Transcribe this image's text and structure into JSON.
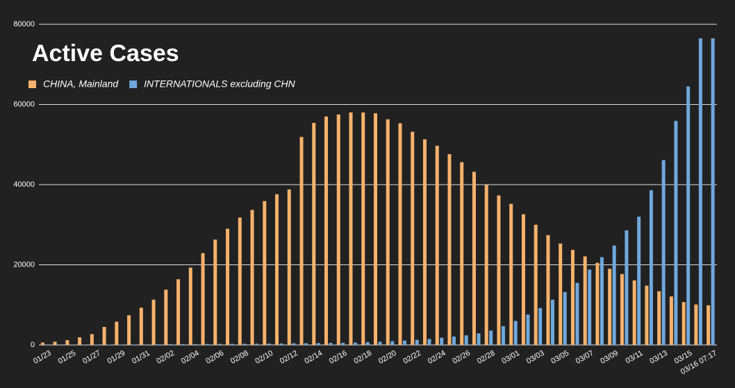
{
  "chart_data": {
    "type": "bar",
    "title": "Active Cases",
    "categories": [
      "01/23",
      null,
      "01/25",
      null,
      "01/27",
      null,
      "01/29",
      null,
      "01/31",
      null,
      "02/02",
      null,
      "02/04",
      null,
      "02/06",
      null,
      "02/08",
      null,
      "02/10",
      null,
      "02/12",
      null,
      "02/14",
      null,
      "02/16",
      null,
      "02/18",
      null,
      "02/20",
      null,
      "02/22",
      null,
      "02/24",
      null,
      "02/26",
      null,
      "02/28",
      null,
      "03/01",
      null,
      "03/03",
      null,
      "03/05",
      null,
      "03/07",
      null,
      "03/09",
      null,
      "03/11",
      null,
      "03/13",
      null,
      "03/15",
      null,
      "03/16 07:17"
    ],
    "series": [
      {
        "name": "CHINA, Mainland",
        "color": "#f6b26b",
        "values": [
          600,
          800,
          1200,
          1900,
          2700,
          4500,
          5800,
          7400,
          9300,
          11300,
          13800,
          16400,
          19300,
          22900,
          26300,
          29000,
          31800,
          33700,
          35900,
          37600,
          38800,
          51900,
          55400,
          57000,
          57500,
          58000,
          58000,
          57800,
          56300,
          55300,
          53200,
          51300,
          49700,
          47600,
          45600,
          43200,
          39900,
          37300,
          35200,
          32600,
          30000,
          27400,
          25300,
          23700,
          22100,
          20500,
          19000,
          17700,
          16100,
          14800,
          13400,
          12100,
          10700,
          10100,
          9900
        ]
      },
      {
        "name": "INTERNATIONALS excluding CHN",
        "color": "#6fa8dc",
        "values": [
          10,
          20,
          30,
          40,
          60,
          80,
          100,
          120,
          140,
          160,
          180,
          200,
          220,
          240,
          270,
          290,
          310,
          330,
          350,
          380,
          420,
          440,
          470,
          500,
          550,
          600,
          700,
          800,
          950,
          1100,
          1300,
          1500,
          1800,
          2100,
          2400,
          2900,
          3600,
          4700,
          6000,
          7600,
          9200,
          11300,
          13200,
          15500,
          18800,
          21900,
          24800,
          28600,
          32000,
          38600,
          46100,
          55900,
          64500,
          76500,
          76500
        ]
      }
    ],
    "ylim": [
      0,
      80000
    ],
    "yticks": [
      0,
      20000,
      40000,
      60000,
      80000
    ],
    "grid": true
  }
}
